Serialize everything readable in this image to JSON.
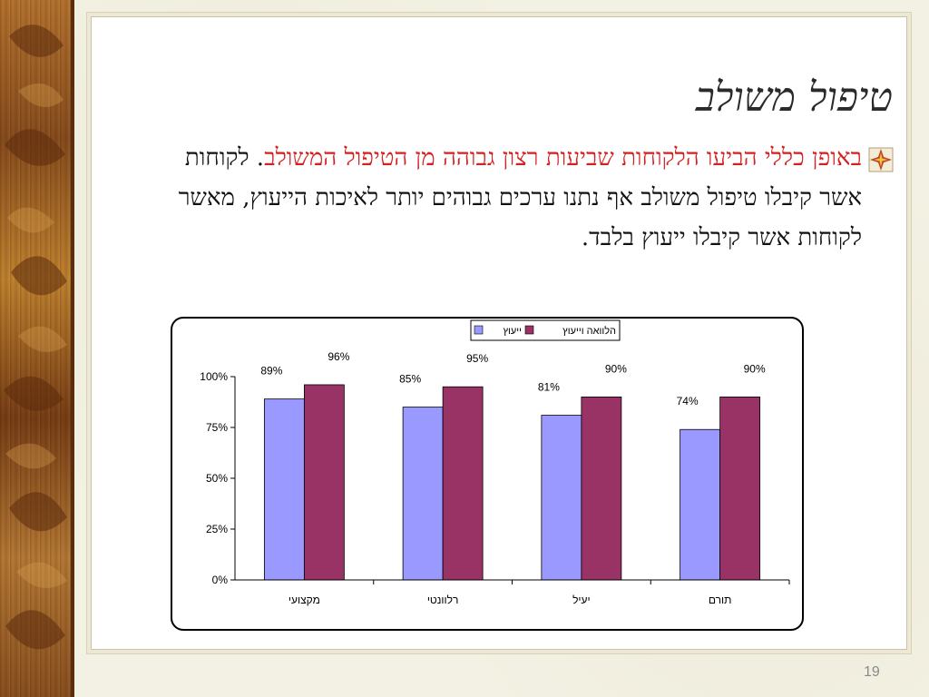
{
  "slide": {
    "title": "טיפול משולב",
    "body_highlight": "באופן כללי הביעו הלקוחות שביעות רצון גבוהה מן הטיפול המשולב",
    "body_rest": ". לקוחות אשר קיבלו טיפול משולב אף נתנו ערכים גבוהים יותר לאיכות הייעוץ, מאשר לקוחות אשר קיבלו ייעוץ בלבד.",
    "slide_number": "19",
    "highlight_color": "#d42020"
  },
  "chart_data": {
    "type": "bar",
    "categories": [
      "מקצועי",
      "רלוונטי",
      "יעיל",
      "תורם"
    ],
    "series": [
      {
        "name": "ייעוץ",
        "values": [
          89,
          85,
          81,
          74
        ],
        "labels": [
          "89%",
          "85%",
          "81%",
          "74%"
        ],
        "color": "#9999ff"
      },
      {
        "name": "הלוואה וייעוץ",
        "values": [
          96,
          95,
          90,
          90
        ],
        "labels": [
          "96%",
          "95%",
          "90%",
          "90%"
        ],
        "color": "#993366"
      }
    ],
    "y_ticks": [
      "0%",
      "25%",
      "50%",
      "75%",
      "100%"
    ],
    "ylim": [
      0,
      100
    ],
    "legend_position": "top-center",
    "grid": false
  }
}
